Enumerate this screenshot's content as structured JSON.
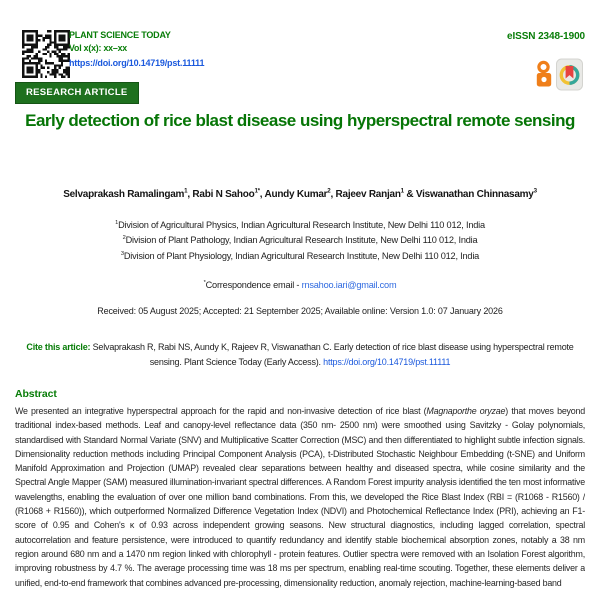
{
  "colors": {
    "brand_green": "#087d08",
    "badge_green": "#1e701e",
    "link_blue": "#1b59dd",
    "open_access_orange": "#ef7f1a"
  },
  "header": {
    "journal_name": "PLANT SCIENCE TODAY",
    "volume_line": "Vol x(x): xx–xx",
    "doi": "https://doi.org/10.14719/pst.11111",
    "eissn": "eISSN 2348-1900",
    "article_type": "RESEARCH ARTICLE",
    "icons": [
      "qr-code",
      "open-access-icon",
      "badge-icon"
    ]
  },
  "title": "Early detection of rice blast disease using hyperspectral remote sensing",
  "authors": {
    "segments": [
      {
        "text": "Selvaprakash Ramalingam"
      },
      {
        "sup": "1"
      },
      {
        "text": ", Rabi N Sahoo"
      },
      {
        "sup": "1*"
      },
      {
        "text": ", Aundy Kumar"
      },
      {
        "sup": "2"
      },
      {
        "text": ", Rajeev Ranjan"
      },
      {
        "sup": "1"
      },
      {
        "text": " & Viswanathan Chinnasamy"
      },
      {
        "sup": "3"
      }
    ]
  },
  "affiliations": [
    {
      "sup": "1",
      "text": "Division of Agricultural Physics, Indian Agricultural Research Institute, New Delhi 110 012, India"
    },
    {
      "sup": "2",
      "text": "Division of Plant Pathology, Indian Agricultural Research Institute, New Delhi 110 012, India"
    },
    {
      "sup": "3",
      "text": "Division of Plant Physiology, Indian Agricultural Research Institute, New Delhi 110 012, India"
    }
  ],
  "correspondence": {
    "sup": "*",
    "label": "Correspondence email - ",
    "email": "rnsahoo.iari@gmail.com"
  },
  "dates_line": "Received: 05 August 2025; Accepted: 21 September 2025; Available online: Version 1.0: 07 January 2026",
  "citation": {
    "label": "Cite this article:",
    "text": " Selvaprakash R, Rabi NS, Aundy K, Rajeev R, Viswanathan C. Early detection of rice blast disease using hyperspectral remote sensing. Plant Science Today (Early Access). ",
    "link": "https://doi.org/10.14719/pst.11111"
  },
  "abstract": {
    "heading": "Abstract",
    "segments": [
      {
        "text": "We presented an integrative hyperspectral approach for the rapid and non-invasive detection of rice blast ("
      },
      {
        "text": "Magnaporthe oryzae",
        "italic": true
      },
      {
        "text": ") that moves beyond traditional index-based methods. Leaf and canopy-level reflectance data (350 nm- 2500 nm) were smoothed using Savitzky - Golay polynomials, standardised with Standard Normal Variate (SNV) and Multiplicative Scatter Correction (MSC) and then differentiated to highlight subtle infection signals. Dimensionality reduction methods including Principal Component Analysis (PCA), t-Distributed Stochastic Neighbour Embedding (t-SNE) and Uniform Manifold Approximation and Projection (UMAP) revealed clear separations between healthy and diseased spectra, while cosine similarity and the Spectral Angle Mapper (SAM) measured illumination-invariant spectral differences. A Random Forest impurity analysis identified the ten most informative wavelengths, enabling the evaluation of over one million band combinations. From this, we developed the Rice Blast Index (RBI = (R1068 - R1560) / (R1068 + R1560)), which outperformed Normalized Difference Vegetation Index (NDVI) and Photochemical Reflectance Index (PRI), achieving an F1-score of 0.95 and Cohen's κ of 0.93 across independent growing seasons. New structural diagnostics, including lagged correlation, spectral autocorrelation and feature persistence, were introduced to quantify redundancy and identify stable biochemical absorption zones, notably a 38 nm region around 680 nm and a 1470 nm region linked with chlorophyll - protein features. Outlier spectra were removed with an Isolation Forest algorithm, improving robustness by 4.7 %. The average processing time was 18 ms per spectrum, enabling real-time scouting. Together, these elements deliver a unified, end-to-end framework that combines advanced pre-processing, dimensionality reduction, anomaly rejection, machine-learning-based band"
      }
    ]
  }
}
